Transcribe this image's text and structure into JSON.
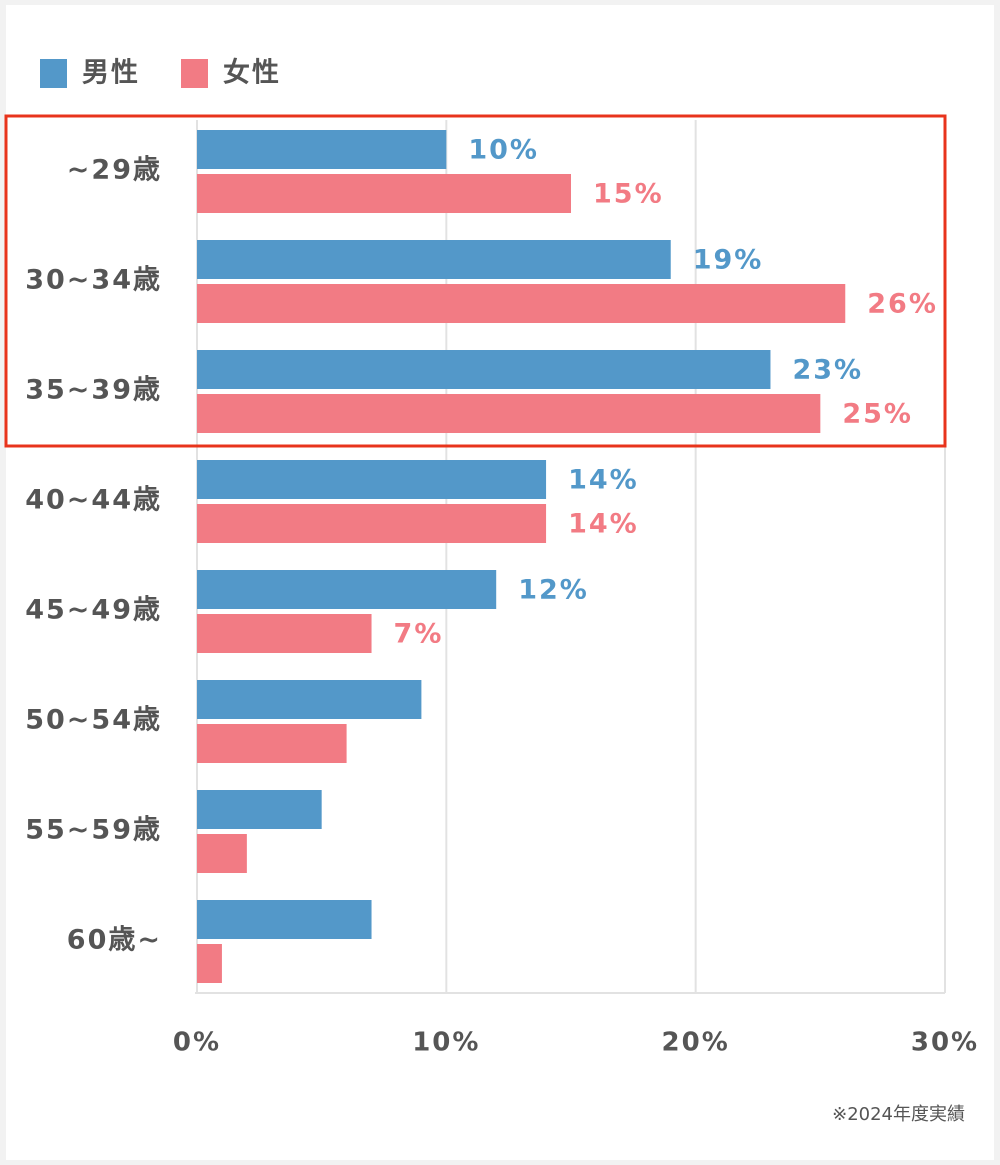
{
  "chart_data": {
    "type": "hbar",
    "categories": [
      "~29歳",
      "30~34歳",
      "35~39歳",
      "40~44歳",
      "45~49歳",
      "50~54歳",
      "55~59歳",
      "60歳~"
    ],
    "series": [
      {
        "name": "男性",
        "color": "#5398c9",
        "values": [
          10,
          19,
          23,
          14,
          12,
          9,
          5,
          7
        ],
        "value_labels": [
          "10%",
          "19%",
          "23%",
          "14%",
          "12%",
          null,
          null,
          null
        ]
      },
      {
        "name": "女性",
        "color": "#f27b84",
        "values": [
          15,
          26,
          25,
          14,
          7,
          6,
          2,
          1
        ],
        "value_labels": [
          "15%",
          "26%",
          "25%",
          "14%",
          "7%",
          null,
          null,
          null
        ]
      }
    ],
    "xlim": [
      0,
      30
    ],
    "xticks": [
      {
        "value": 0,
        "label": "0%"
      },
      {
        "value": 10,
        "label": "10%"
      },
      {
        "value": 20,
        "label": "20%"
      },
      {
        "value": 30,
        "label": "30%"
      }
    ],
    "grid": true,
    "legend": "top-left",
    "note": "※2024年度実績"
  }
}
